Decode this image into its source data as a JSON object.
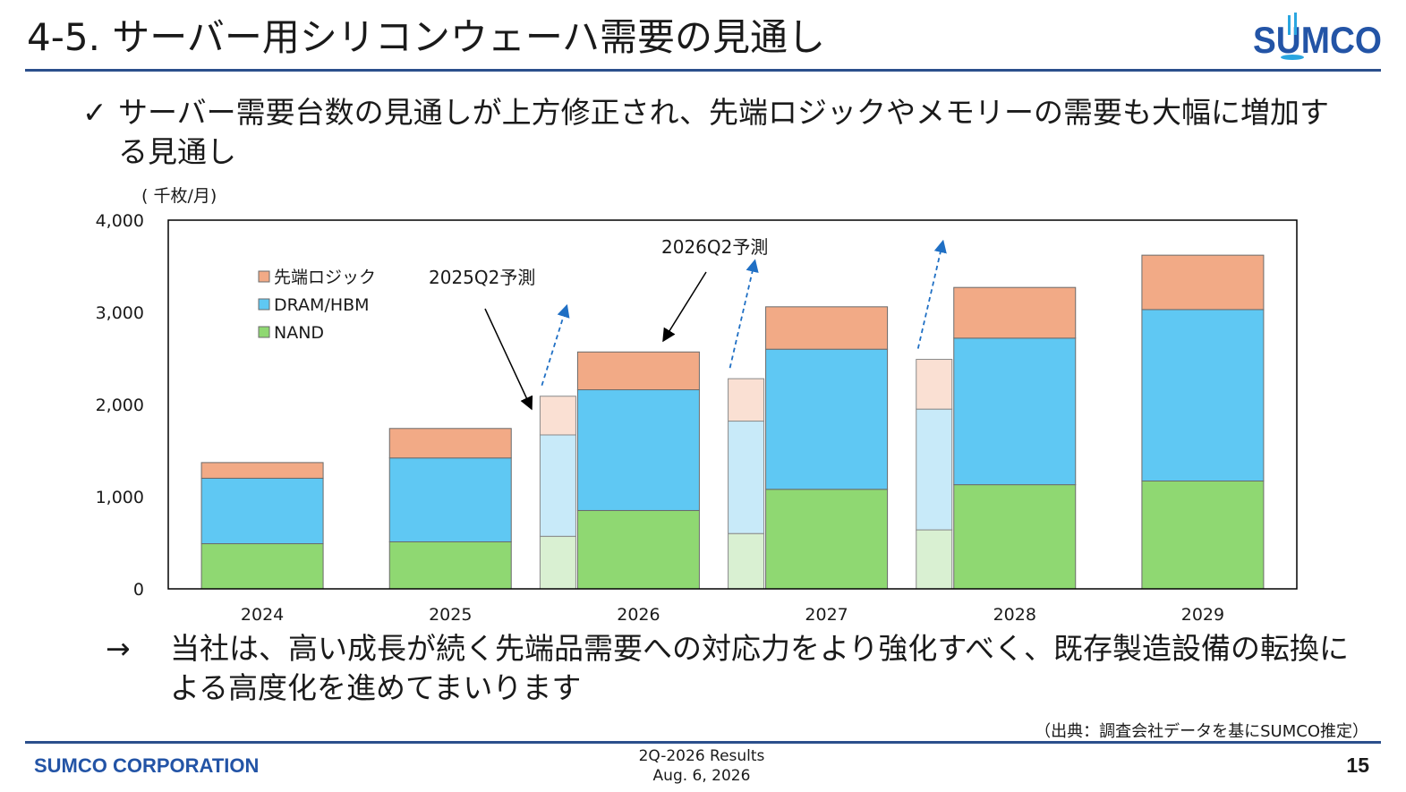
{
  "slide": {
    "title": "4-5. サーバー用シリコンウェーハ需要の見通し",
    "bullet_mark": "✓",
    "bullet_text": "サーバー需要台数の見通しが上方修正され、先端ロジックやメモリーの需要も大幅に増加する見通し",
    "conclusion_mark": "→",
    "conclusion_text": "当社は、高い成長が続く先端品需要への対応力をより強化すべく、既存製造設備の転換による高度化を進めてまいります",
    "source": "（出典：調査会社データを基にSUMCO推定）"
  },
  "brand": {
    "logo_text": "SUMCO",
    "company": "SUMCO CORPORATION",
    "report_line1": "2Q-2026 Results",
    "report_line2": "Aug. 6, 2026",
    "page": "15",
    "color": "#2354a6"
  },
  "chart_data": {
    "type": "bar",
    "stacked": true,
    "unit_label": "( 千枚/月)",
    "ylim": [
      0,
      4000
    ],
    "yticks": [
      "0",
      "1,000",
      "2,000",
      "3,000",
      "4,000"
    ],
    "categories": [
      "2024",
      "2025",
      "2026",
      "2027",
      "2028",
      "2029"
    ],
    "series": [
      {
        "name": "NAND",
        "color": "#8fd872",
        "values": [
          490,
          510,
          850,
          1080,
          1130,
          1170
        ]
      },
      {
        "name": "DRAM/HBM",
        "color": "#5fc8f3",
        "values": [
          710,
          910,
          1310,
          1520,
          1590,
          1860
        ]
      },
      {
        "name": "先端ロジック",
        "color": "#f2aa86",
        "values": [
          170,
          320,
          410,
          460,
          550,
          590
        ]
      }
    ],
    "previous_forecast": {
      "label": "2025Q2予測",
      "categories": [
        "2026",
        "2027",
        "2028"
      ],
      "NAND": [
        570,
        600,
        640
      ],
      "DRAM/HBM": [
        1100,
        1220,
        1310
      ],
      "先端ロジック": [
        420,
        460,
        540
      ],
      "colors": {
        "NAND": "#d9f0d2",
        "DRAM/HBM": "#c8eaf9",
        "先端ロジック": "#fae0d3"
      }
    },
    "current_forecast_label": "2026Q2予測",
    "legend_position": "top-left",
    "grid": false
  }
}
